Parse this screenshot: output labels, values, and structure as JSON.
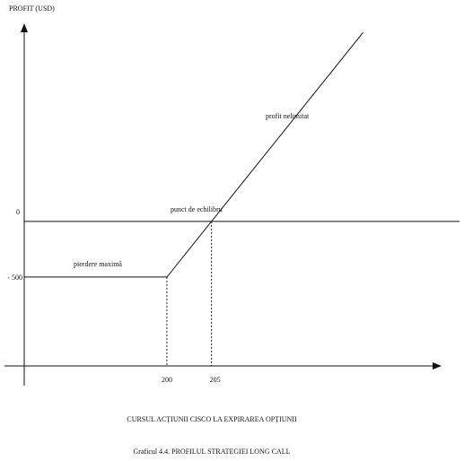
{
  "chart_data": {
    "type": "line",
    "ylabel": "PROFIT (USD)",
    "xlabel": "CURSUL ACȚIUNII CISCO LA EXPIRAREA OPȚIUNII",
    "caption": "Graficul 4.4. PROFILUL STRATEGIEI LONG CALL",
    "x_ticks": [
      {
        "value": 200,
        "label": "200"
      },
      {
        "value": 205,
        "label": "205"
      }
    ],
    "y_ticks": [
      {
        "value": 0,
        "label": "0"
      },
      {
        "value": -500,
        "label": "- 500"
      }
    ],
    "xlim": [
      184,
      230
    ],
    "ylim": [
      -1300,
      1750
    ],
    "series": [
      {
        "points": [
          [
            184,
            -500
          ],
          [
            200,
            -500
          ],
          [
            205,
            0
          ],
          [
            222,
            1700
          ]
        ]
      }
    ],
    "annotations": {
      "max_loss": "pierdere maximă",
      "break_even": "punct de echilibru",
      "unlimited_profit": "profit nelimitat"
    },
    "grid": false
  }
}
